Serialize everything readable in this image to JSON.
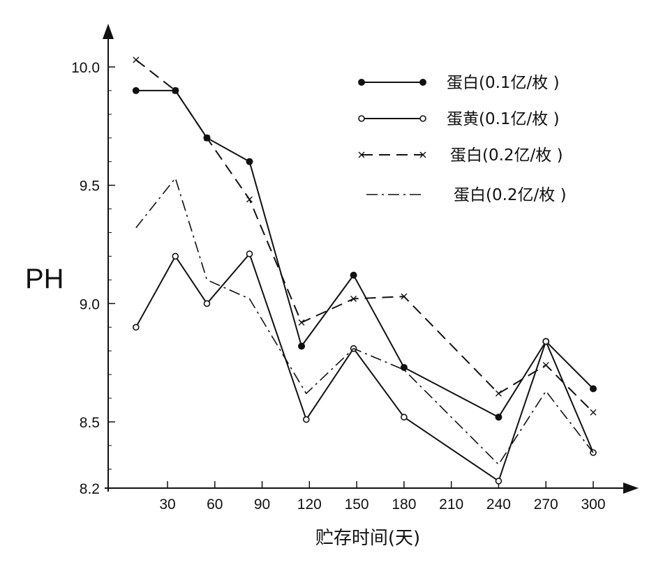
{
  "chart_data": {
    "type": "line",
    "ylabel": "PH",
    "xlabel": "贮存时间(天)",
    "x_ticks": [
      "30",
      "60",
      "90",
      "120",
      "150",
      "180",
      "210",
      "240",
      "270",
      "300"
    ],
    "y_ticks": [
      "10.0",
      "9.5",
      "9.0",
      "8.5",
      "8.2"
    ],
    "xlim": [
      0,
      300
    ],
    "ylim": [
      8.2,
      10.1
    ],
    "grid": false,
    "legend_position": "top-right",
    "series": [
      {
        "name": "蛋白(0.1亿/枚 )",
        "line_style": "solid",
        "marker": "filled-circle",
        "x": [
          10,
          35,
          55,
          82,
          115,
          148,
          180,
          240,
          270,
          300
        ],
        "y": [
          9.9,
          9.9,
          9.7,
          9.6,
          8.82,
          9.12,
          8.73,
          8.52,
          8.84,
          8.64
        ]
      },
      {
        "name": "蛋黄(0.1亿/枚 )",
        "line_style": "solid",
        "marker": "open-circle",
        "x": [
          10,
          35,
          55,
          82,
          118,
          148,
          180,
          240,
          270,
          300
        ],
        "y": [
          8.9,
          9.2,
          9.0,
          9.21,
          8.51,
          8.81,
          8.52,
          8.25,
          8.84,
          8.37
        ]
      },
      {
        "name": "蛋白(0.2亿/枚 )",
        "line_style": "dashed",
        "marker": "x",
        "x": [
          10,
          35,
          55,
          82,
          115,
          148,
          180,
          240,
          270,
          300
        ],
        "y": [
          10.03,
          9.9,
          9.7,
          9.44,
          8.92,
          9.02,
          9.03,
          8.62,
          8.74,
          8.54
        ]
      },
      {
        "name": "蛋白(0.2亿/枚 )",
        "line_style": "dash-dot",
        "marker": "none",
        "x": [
          10,
          35,
          55,
          82,
          118,
          148,
          180,
          240,
          270,
          300
        ],
        "y": [
          9.32,
          9.53,
          9.1,
          9.02,
          8.62,
          8.81,
          8.72,
          8.32,
          8.63,
          8.37
        ]
      }
    ]
  }
}
